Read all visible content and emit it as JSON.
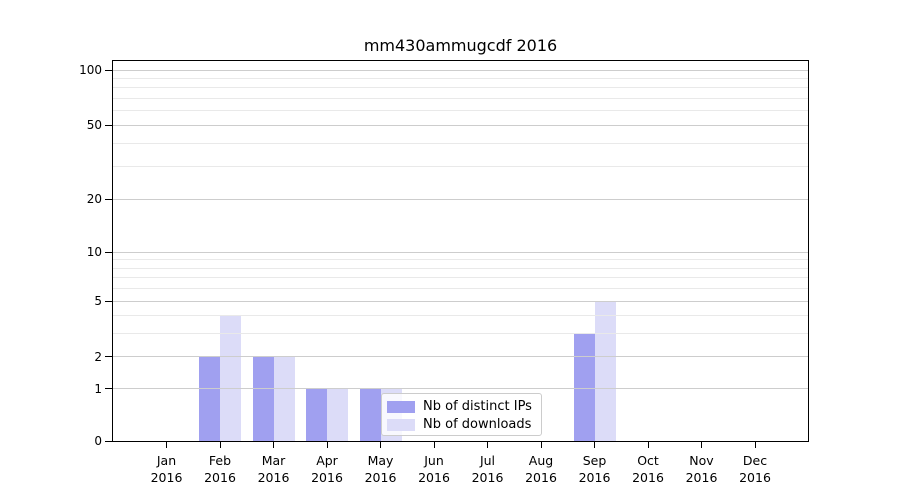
{
  "figure": {
    "title": "mm430ammugcdf 2016"
  },
  "chart_data": {
    "type": "bar",
    "title": "mm430ammugcdf 2016",
    "xlabel": "",
    "ylabel": "",
    "categories": [
      "Jan 2016",
      "Feb 2016",
      "Mar 2016",
      "Apr 2016",
      "May 2016",
      "Jun 2016",
      "Jul 2016",
      "Aug 2016",
      "Sep 2016",
      "Oct 2016",
      "Nov 2016",
      "Dec 2016"
    ],
    "series": [
      {
        "name": "Nb of distinct IPs",
        "color": "#a0a0f0",
        "values": [
          0,
          2,
          2,
          1,
          1,
          0,
          0,
          0,
          3,
          0,
          0,
          0
        ]
      },
      {
        "name": "Nb of downloads",
        "color": "#dcdcf8",
        "values": [
          0,
          4,
          2,
          1,
          1,
          0,
          0,
          0,
          5,
          0,
          0,
          0
        ]
      }
    ],
    "yscale": "log(1+x)",
    "ylim": [
      0,
      110
    ],
    "yticks": [
      0,
      1,
      2,
      5,
      10,
      20,
      50,
      100
    ],
    "minor_yticks": [
      3,
      4,
      6,
      7,
      8,
      9,
      30,
      40,
      60,
      70,
      80,
      90
    ],
    "grid": "horizontal",
    "legend": {
      "position": "inside-bottom-center",
      "items": [
        "Nb of distinct IPs",
        "Nb of downloads"
      ]
    }
  }
}
